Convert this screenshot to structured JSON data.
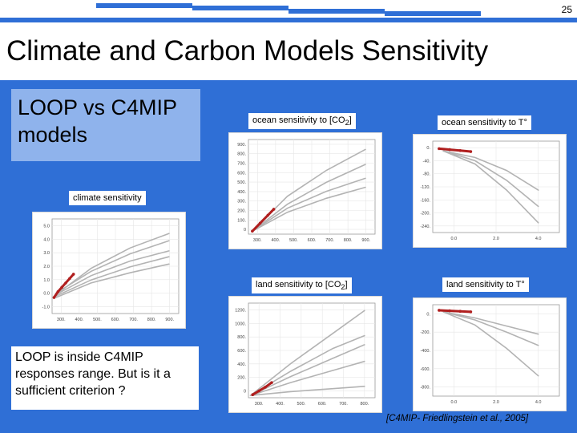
{
  "slide": {
    "number": "25",
    "title": "Climate and Carbon Models Sensitivity",
    "subtitle": "LOOP vs C4MIP models",
    "footer_text": "LOOP is inside C4MIP responses range. But is it a sufficient criterion ?",
    "citation": "[C4MIP- Friedlingstein et al., 2005]",
    "colors": {
      "background": "#2f6fd6",
      "subtitle_box": "#8fb3ec",
      "loop_series": "#b01e1e",
      "c4mip_series": "#b3b3b3"
    }
  },
  "labels": {
    "climate": "climate sensitivity",
    "ocean_co2_prefix": "ocean sensitivity to [CO",
    "ocean_co2_sub": "2",
    "ocean_co2_suffix": "]",
    "ocean_t": "ocean sensitivity to T°",
    "land_co2_prefix": "land sensitivity to [CO",
    "land_co2_sub": "2",
    "land_co2_suffix": "]",
    "land_t": "land sensitivity to T°"
  },
  "chart_data": [
    {
      "name": "climate",
      "type": "line",
      "xticks": [
        "300.",
        "400.",
        "500.",
        "600.",
        "700.",
        "800.",
        "900."
      ],
      "yticks": [
        "5.0",
        "4.0",
        "3.0",
        "2.0",
        "1.0",
        "0.0",
        "-1.0"
      ],
      "xlim": [
        300,
        950
      ],
      "ylim": [
        -1,
        5.5
      ],
      "series": [
        {
          "name": "C4MIP",
          "points": [
            [
              320,
              0.3
            ],
            [
              500,
              1.6
            ],
            [
              700,
              2.6
            ],
            [
              900,
              3.3
            ]
          ]
        },
        {
          "name": "C4MIP",
          "points": [
            [
              320,
              0.2
            ],
            [
              500,
              1.3
            ],
            [
              700,
              2.2
            ],
            [
              900,
              2.9
            ]
          ]
        },
        {
          "name": "C4MIP",
          "points": [
            [
              320,
              0.4
            ],
            [
              500,
              1.9
            ],
            [
              700,
              3.1
            ],
            [
              900,
              4.0
            ]
          ]
        },
        {
          "name": "C4MIP",
          "points": [
            [
              320,
              0.1
            ],
            [
              500,
              1.1
            ],
            [
              700,
              1.8
            ],
            [
              900,
              2.4
            ]
          ]
        },
        {
          "name": "C4MIP",
          "points": [
            [
              320,
              0.3
            ],
            [
              500,
              2.1
            ],
            [
              700,
              3.5
            ],
            [
              900,
              4.5
            ]
          ]
        },
        {
          "name": "LOOP",
          "points": [
            [
              310,
              0.1
            ],
            [
              330,
              0.5
            ],
            [
              350,
              0.8
            ],
            [
              370,
              1.1
            ],
            [
              390,
              1.4
            ],
            [
              410,
              1.7
            ]
          ]
        }
      ]
    },
    {
      "name": "ocean-co2",
      "type": "line",
      "xticks": [
        "300.",
        "400.",
        "500.",
        "600.",
        "700.",
        "800.",
        "900."
      ],
      "yticks": [
        "900.",
        "800.",
        "700.",
        "600.",
        "500.",
        "400.",
        "300.",
        "200.",
        "100.",
        "0"
      ],
      "xlim": [
        300,
        950
      ],
      "ylim": [
        0,
        950
      ],
      "series": [
        {
          "name": "C4MIP",
          "points": [
            [
              320,
              30
            ],
            [
              500,
              300
            ],
            [
              700,
              520
            ],
            [
              900,
              700
            ]
          ]
        },
        {
          "name": "C4MIP",
          "points": [
            [
              320,
              30
            ],
            [
              500,
              380
            ],
            [
              700,
              640
            ],
            [
              900,
              850
            ]
          ]
        },
        {
          "name": "C4MIP",
          "points": [
            [
              320,
              30
            ],
            [
              500,
              260
            ],
            [
              700,
              430
            ],
            [
              900,
              560
            ]
          ]
        },
        {
          "name": "C4MIP",
          "points": [
            [
              320,
              30
            ],
            [
              500,
              220
            ],
            [
              700,
              360
            ],
            [
              900,
              470
            ]
          ]
        },
        {
          "name": "LOOP",
          "points": [
            [
              320,
              30
            ],
            [
              360,
              110
            ],
            [
              400,
              190
            ],
            [
              430,
              250
            ]
          ]
        }
      ]
    },
    {
      "name": "ocean-t",
      "type": "line",
      "xticks": [
        "0.0",
        "2.0",
        "4.0"
      ],
      "yticks": [
        "0.",
        "-40.",
        "-80.",
        "-120.",
        "-160.",
        "-200.",
        "-240."
      ],
      "xlim": [
        -0.5,
        5.5
      ],
      "ylim": [
        -260,
        20
      ],
      "series": [
        {
          "name": "C4MIP",
          "points": [
            [
              0,
              -10
            ],
            [
              1.5,
              -40
            ],
            [
              3,
              -100
            ],
            [
              4.5,
              -180
            ]
          ]
        },
        {
          "name": "C4MIP",
          "points": [
            [
              0,
              -10
            ],
            [
              1.5,
              -30
            ],
            [
              3,
              -70
            ],
            [
              4.5,
              -130
            ]
          ]
        },
        {
          "name": "C4MIP",
          "points": [
            [
              0,
              -10
            ],
            [
              1.5,
              -50
            ],
            [
              3,
              -130
            ],
            [
              4.5,
              -230
            ]
          ]
        },
        {
          "name": "LOOP",
          "points": [
            [
              -0.2,
              -3
            ],
            [
              0.3,
              -6
            ],
            [
              0.8,
              -9
            ],
            [
              1.3,
              -12
            ]
          ]
        }
      ]
    },
    {
      "name": "land-co2",
      "type": "line",
      "xticks": [
        "300.",
        "400.",
        "500.",
        "600.",
        "700.",
        "800."
      ],
      "yticks": [
        "1200.",
        "1000.",
        "800.",
        "600.",
        "400.",
        "200.",
        "0"
      ],
      "xlim": [
        300,
        900
      ],
      "ylim": [
        0,
        1250
      ],
      "series": [
        {
          "name": "C4MIP",
          "points": [
            [
              310,
              30
            ],
            [
              500,
              450
            ],
            [
              700,
              850
            ],
            [
              850,
              1150
            ]
          ]
        },
        {
          "name": "C4MIP",
          "points": [
            [
              310,
              30
            ],
            [
              500,
              350
            ],
            [
              700,
              650
            ],
            [
              850,
              820
            ]
          ]
        },
        {
          "name": "C4MIP",
          "points": [
            [
              310,
              30
            ],
            [
              500,
              280
            ],
            [
              700,
              520
            ],
            [
              850,
              700
            ]
          ]
        },
        {
          "name": "C4MIP",
          "points": [
            [
              310,
              30
            ],
            [
              500,
              200
            ],
            [
              700,
              360
            ],
            [
              850,
              480
            ]
          ]
        },
        {
          "name": "C4MIP",
          "points": [
            [
              310,
              30
            ],
            [
              500,
              80
            ],
            [
              700,
              120
            ],
            [
              850,
              150
            ]
          ]
        },
        {
          "name": "LOOP",
          "points": [
            [
              320,
              40
            ],
            [
              350,
              90
            ],
            [
              380,
              140
            ],
            [
              410,
              200
            ]
          ]
        }
      ]
    },
    {
      "name": "land-t",
      "type": "line",
      "xticks": [
        "0.0",
        "2.0",
        "4.0"
      ],
      "yticks": [
        "0.",
        "-200.",
        "-400.",
        "-600.",
        "-800."
      ],
      "xlim": [
        -0.5,
        5.5
      ],
      "ylim": [
        -850,
        50
      ],
      "series": [
        {
          "name": "C4MIP",
          "points": [
            [
              0,
              -20
            ],
            [
              1.5,
              -100
            ],
            [
              3,
              -220
            ],
            [
              4.5,
              -350
            ]
          ]
        },
        {
          "name": "C4MIP",
          "points": [
            [
              0,
              -20
            ],
            [
              1.5,
              -150
            ],
            [
              3,
              -380
            ],
            [
              4.5,
              -650
            ]
          ]
        },
        {
          "name": "C4MIP",
          "points": [
            [
              0,
              -20
            ],
            [
              1.5,
              -80
            ],
            [
              3,
              -160
            ],
            [
              4.5,
              -240
            ]
          ]
        },
        {
          "name": "LOOP",
          "points": [
            [
              -0.2,
              -5
            ],
            [
              0.3,
              -10
            ],
            [
              0.8,
              -15
            ],
            [
              1.3,
              -20
            ]
          ]
        }
      ]
    }
  ]
}
